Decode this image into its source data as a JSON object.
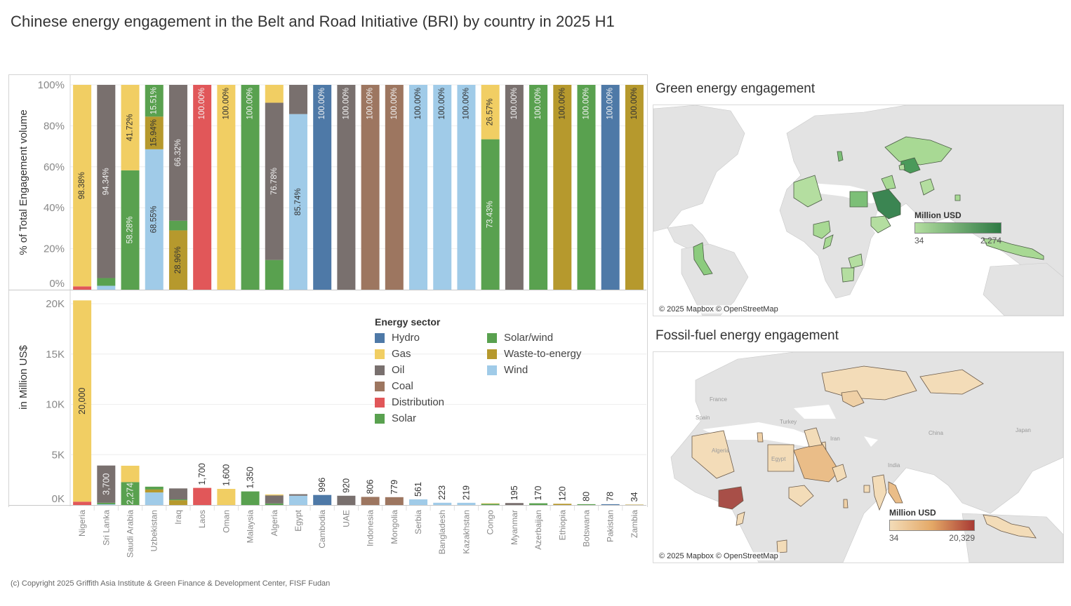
{
  "title": "Chinese energy engagement in the Belt and Road Initiative (BRI) by country in 2025 H1",
  "footer": "(c) Copyright 2025 Griffith Asia Institute & Green Finance & Development Center, FISF Fudan",
  "sectors": [
    {
      "name": "Hydro",
      "color": "#4e79a7"
    },
    {
      "name": "Gas",
      "color": "#f1ce63"
    },
    {
      "name": "Oil",
      "color": "#79706e"
    },
    {
      "name": "Coal",
      "color": "#9d7660"
    },
    {
      "name": "Distribution",
      "color": "#e15759"
    },
    {
      "name": "Solar",
      "color": "#59a14f"
    },
    {
      "name": "Solar/wind",
      "color": "#59a14f"
    },
    {
      "name": "Waste-to-energy",
      "color": "#b6992d"
    },
    {
      "name": "Wind",
      "color": "#a0cbe8"
    }
  ],
  "legend": {
    "title": "Energy sector"
  },
  "chart_data": [
    {
      "type": "bar",
      "stacked": "percent",
      "title": "",
      "xlabel": "",
      "ylabel": "% of Total Engagement volume",
      "ylim": [
        0,
        100
      ],
      "yticks": [
        "0%",
        "20%",
        "40%",
        "60%",
        "80%",
        "100%"
      ],
      "grid": true,
      "categories": [
        "Nigeria",
        "Sri Lanka",
        "Saudi Arabia",
        "Uzbekistan",
        "Iraq",
        "Laos",
        "Oman",
        "Malaysia",
        "Algeria",
        "Egypt",
        "Cambodia",
        "UAE",
        "Indonesia",
        "Mongolia",
        "Serbia",
        "Bangladesh",
        "Kazakhstan",
        "Congo",
        "Myanmar",
        "Azerbaijan",
        "Ethiopia",
        "Botswana",
        "Pakistan",
        "Zambia"
      ],
      "stacks": [
        [
          {
            "sector": "Distribution",
            "pct": 1.62,
            "label": ""
          },
          {
            "sector": "Gas",
            "pct": 98.38,
            "label": "98.38%"
          }
        ],
        [
          {
            "sector": "Wind",
            "pct": 1.9,
            "label": ""
          },
          {
            "sector": "Solar",
            "pct": 3.76,
            "label": ""
          },
          {
            "sector": "Oil",
            "pct": 94.34,
            "label": "94.34%"
          }
        ],
        [
          {
            "sector": "Solar",
            "pct": 58.28,
            "label": "58.28%"
          },
          {
            "sector": "Gas",
            "pct": 41.72,
            "label": "41.72%"
          }
        ],
        [
          {
            "sector": "Wind",
            "pct": 68.55,
            "label": "68.55%"
          },
          {
            "sector": "Waste-to-energy",
            "pct": 15.94,
            "label": "15.94%"
          },
          {
            "sector": "Solar/wind",
            "pct": 15.51,
            "label": "15.51%"
          }
        ],
        [
          {
            "sector": "Waste-to-energy",
            "pct": 28.96,
            "label": "28.96%"
          },
          {
            "sector": "Solar",
            "pct": 4.72,
            "label": ""
          },
          {
            "sector": "Oil",
            "pct": 66.32,
            "label": "66.32%"
          }
        ],
        [
          {
            "sector": "Distribution",
            "pct": 100,
            "label": "100.00%"
          }
        ],
        [
          {
            "sector": "Gas",
            "pct": 100,
            "label": "100.00%"
          }
        ],
        [
          {
            "sector": "Solar",
            "pct": 100,
            "label": "100.00%"
          }
        ],
        [
          {
            "sector": "Solar",
            "pct": 14.5,
            "label": ""
          },
          {
            "sector": "Oil",
            "pct": 76.78,
            "label": "76.78%"
          },
          {
            "sector": "Gas",
            "pct": 8.72,
            "label": ""
          }
        ],
        [
          {
            "sector": "Wind",
            "pct": 85.74,
            "label": "85.74%"
          },
          {
            "sector": "Oil",
            "pct": 14.26,
            "label": ""
          }
        ],
        [
          {
            "sector": "Hydro",
            "pct": 100,
            "label": "100.00%"
          }
        ],
        [
          {
            "sector": "Oil",
            "pct": 100,
            "label": "100.00%"
          }
        ],
        [
          {
            "sector": "Coal",
            "pct": 100,
            "label": "100.00%"
          }
        ],
        [
          {
            "sector": "Coal",
            "pct": 100,
            "label": "100.00%"
          }
        ],
        [
          {
            "sector": "Wind",
            "pct": 100,
            "label": "100.00%"
          }
        ],
        [
          {
            "sector": "Wind",
            "pct": 100,
            "label": "100.00%"
          }
        ],
        [
          {
            "sector": "Wind",
            "pct": 100,
            "label": "100.00%"
          }
        ],
        [
          {
            "sector": "Solar",
            "pct": 73.43,
            "label": "73.43%"
          },
          {
            "sector": "Gas",
            "pct": 26.57,
            "label": "26.57%"
          }
        ],
        [
          {
            "sector": "Oil",
            "pct": 100,
            "label": "100.00%"
          }
        ],
        [
          {
            "sector": "Solar",
            "pct": 100,
            "label": "100.00%"
          }
        ],
        [
          {
            "sector": "Waste-to-energy",
            "pct": 100,
            "label": "100.00%"
          }
        ],
        [
          {
            "sector": "Solar",
            "pct": 100,
            "label": "100.00%"
          }
        ],
        [
          {
            "sector": "Hydro",
            "pct": 100,
            "label": "100.00%"
          }
        ],
        [
          {
            "sector": "Waste-to-energy",
            "pct": 100,
            "label": "100.00%"
          }
        ]
      ]
    },
    {
      "type": "bar",
      "stacked": "absolute",
      "title": "",
      "xlabel": "",
      "ylabel": "in Million US$",
      "ylim": [
        0,
        20500
      ],
      "yticks": [
        "0K",
        "5K",
        "10K",
        "15K",
        "20K"
      ],
      "grid": true,
      "categories": [
        "Nigeria",
        "Sri Lanka",
        "Saudi Arabia",
        "Uzbekistan",
        "Iraq",
        "Laos",
        "Oman",
        "Malaysia",
        "Algeria",
        "Egypt",
        "Cambodia",
        "UAE",
        "Indonesia",
        "Mongolia",
        "Serbia",
        "Bangladesh",
        "Kazakhstan",
        "Congo",
        "Myanmar",
        "Azerbaijan",
        "Ethiopia",
        "Botswana",
        "Pakistan",
        "Zambia"
      ],
      "totals": [
        20329,
        3922,
        3902,
        1820,
        1648,
        1700,
        1600,
        1350,
        1049,
        1074,
        996,
        920,
        806,
        779,
        561,
        223,
        219,
        170,
        195,
        170,
        120,
        80,
        78,
        34
      ],
      "value_labels": [
        {
          "text": "20,000",
          "inside": true,
          "stack_index": 1
        },
        {
          "text": "3,700",
          "inside": true,
          "stack_index": 2
        },
        {
          "text": "2,274",
          "inside": true,
          "stack_index": 0
        },
        {
          "text": "",
          "inside": false
        },
        {
          "text": "",
          "inside": false
        },
        {
          "text": "1,700",
          "inside": false
        },
        {
          "text": "1,600",
          "inside": false
        },
        {
          "text": "1,350",
          "inside": false
        },
        {
          "text": "",
          "inside": false
        },
        {
          "text": "",
          "inside": false
        },
        {
          "text": "996",
          "inside": false
        },
        {
          "text": "920",
          "inside": false
        },
        {
          "text": "806",
          "inside": false
        },
        {
          "text": "779",
          "inside": false
        },
        {
          "text": "561",
          "inside": false
        },
        {
          "text": "223",
          "inside": false
        },
        {
          "text": "219",
          "inside": false
        },
        {
          "text": "",
          "inside": false
        },
        {
          "text": "195",
          "inside": false
        },
        {
          "text": "170",
          "inside": false
        },
        {
          "text": "120",
          "inside": false
        },
        {
          "text": "80",
          "inside": false
        },
        {
          "text": "78",
          "inside": false
        },
        {
          "text": "34",
          "inside": false
        }
      ]
    }
  ],
  "maps": {
    "green": {
      "title": "Green energy engagement",
      "legend_title": "Million USD",
      "min_label": "34",
      "max_label": "2,274",
      "ramp_from": "#b4dea0",
      "ramp_to": "#2e7a44",
      "credit": "© 2025 Mapbox © OpenStreetMap"
    },
    "fossil": {
      "title": "Fossil-fuel energy engagement",
      "legend_title": "Million USD",
      "min_label": "34",
      "max_label": "20,329",
      "ramp_from": "#f3dcb8",
      "ramp_mid": "#e4a866",
      "ramp_to": "#a83a34",
      "credit": "© 2025 Mapbox © OpenStreetMap",
      "place_labels": [
        "France",
        "Spain",
        "Turkey",
        "Iran",
        "China",
        "Japan",
        "India",
        "Algeria",
        "Egypt"
      ]
    }
  }
}
